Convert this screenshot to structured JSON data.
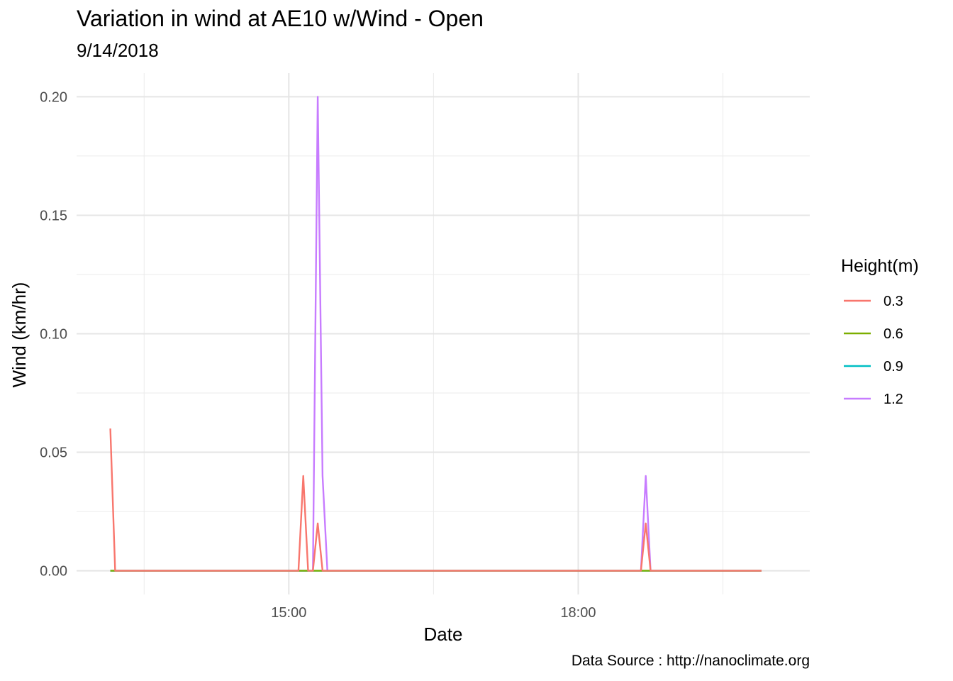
{
  "chart_data": {
    "type": "line",
    "title": "Variation in wind at AE10 w/Wind - Open",
    "subtitle": "9/14/2018",
    "xlabel": "Date",
    "ylabel": "Wind (km/hr)",
    "caption": "Data Source : http://nanoclimate.org",
    "legend_title": "Height(m)",
    "legend_position": "right",
    "grid": true,
    "x_unit": "time of day (hours)",
    "xlim": [
      12.8,
      20.4
    ],
    "ylim": [
      -0.01,
      0.21
    ],
    "x_ticks": [
      15,
      18
    ],
    "x_tick_labels": [
      "15:00",
      "18:00"
    ],
    "y_ticks": [
      0,
      0.05,
      0.1,
      0.15,
      0.2
    ],
    "y_tick_labels": [
      "0.00",
      "0.05",
      "0.10",
      "0.15",
      "0.20"
    ],
    "series": [
      {
        "name": "0.3",
        "color": "#F8766D",
        "x": [
          13.15,
          13.2,
          15.1,
          15.15,
          15.2,
          15.25,
          15.3,
          15.35,
          15.4,
          15.45,
          15.5,
          15.55,
          18.65,
          18.7,
          18.75,
          18.8,
          19.9
        ],
        "y": [
          0.06,
          0,
          0,
          0.04,
          0,
          0,
          0.02,
          0,
          0,
          0,
          0,
          0,
          0,
          0.02,
          0,
          0,
          0
        ]
      },
      {
        "name": "0.6",
        "color": "#7CAE00",
        "x": [
          13.15,
          19.9
        ],
        "y": [
          0,
          0
        ]
      },
      {
        "name": "0.9",
        "color": "#00BFC4",
        "x": [
          13.15,
          19.9
        ],
        "y": [
          0,
          0
        ]
      },
      {
        "name": "1.2",
        "color": "#C77CFF",
        "x": [
          13.15,
          15.25,
          15.3,
          15.35,
          15.4,
          15.45,
          18.65,
          18.7,
          18.75,
          19.9
        ],
        "y": [
          0,
          0,
          0.2,
          0.04,
          0,
          0,
          0,
          0.04,
          0,
          0
        ]
      }
    ]
  }
}
